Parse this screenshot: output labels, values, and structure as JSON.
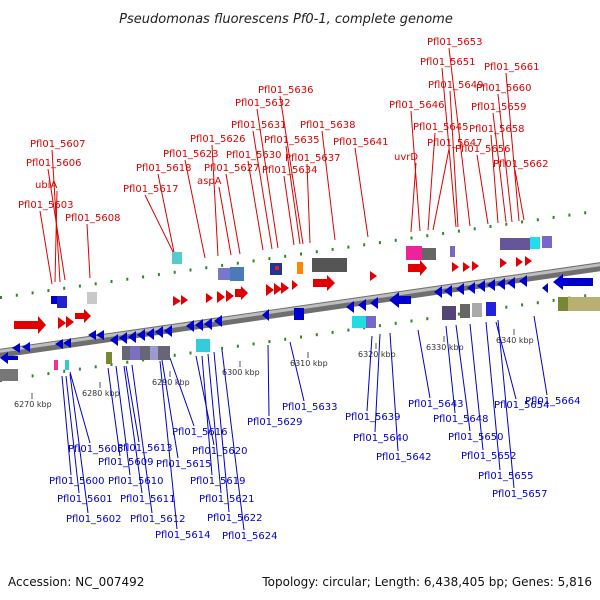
{
  "title": "Pseudomonas fluorescens Pf0-1, complete genome",
  "accession": "Accession: NC_007492",
  "summary": "Topology: circular; Length: 6,438,405 bp; Genes: 5,816",
  "colors": {
    "top_strand": "#e00000",
    "bottom_strand": "#0000cc",
    "backbone": "#8c8c8c",
    "tick": "#2a8a2a"
  },
  "ticks": [
    {
      "label": "6270 kbp"
    },
    {
      "label": "6280 kbp"
    },
    {
      "label": "6290 kbp"
    },
    {
      "label": "6300 kbp"
    },
    {
      "label": "6310 kbp"
    },
    {
      "label": "6320 kbp"
    },
    {
      "label": "6330 kbp"
    },
    {
      "label": "6340 kbp"
    }
  ],
  "top_labels": [
    "Pfl01_5607",
    "Pfl01_5606",
    "ubiA",
    "Pfl01_5603",
    "Pfl01_5608",
    "Pfl01_5617",
    "Pfl01_5618",
    "Pfl01_5623",
    "Pfl01_5626",
    "aspA",
    "Pfl01_5627",
    "Pfl01_5630",
    "Pfl01_5631",
    "Pfl01_5632",
    "Pfl01_5636",
    "Pfl01_5635",
    "Pfl01_5634",
    "Pfl01_5637",
    "Pfl01_5638",
    "Pfl01_5641",
    "uvrD",
    "Pfl01_5646",
    "Pfl01_5645",
    "Pfl01_5647",
    "Pfl01_5649",
    "Pfl01_5651",
    "Pfl01_5653",
    "Pfl01_5656",
    "Pfl01_5658",
    "Pfl01_5659",
    "Pfl01_5660",
    "Pfl01_5661",
    "Pfl01_5662"
  ],
  "bottom_labels": [
    "Pfl01_5605",
    "Pfl01_5600",
    "Pfl01_5601",
    "Pfl01_5602",
    "Pfl01_5609",
    "Pfl01_5610",
    "Pfl01_5611",
    "Pfl01_5612",
    "Pfl01_5613",
    "Pfl01_5614",
    "Pfl01_5615",
    "Pfl01_5616",
    "Pfl01_5619",
    "Pfl01_5620",
    "Pfl01_5621",
    "Pfl01_5622",
    "Pfl01_5624",
    "Pfl01_5629",
    "Pfl01_5633",
    "Pfl01_5639",
    "Pfl01_5640",
    "Pfl01_5642",
    "Pfl01_5643",
    "Pfl01_5648",
    "Pfl01_5650",
    "Pfl01_5652",
    "Pfl01_5654",
    "Pfl01_5655",
    "Pfl01_5657",
    "Pfl01_5664"
  ]
}
